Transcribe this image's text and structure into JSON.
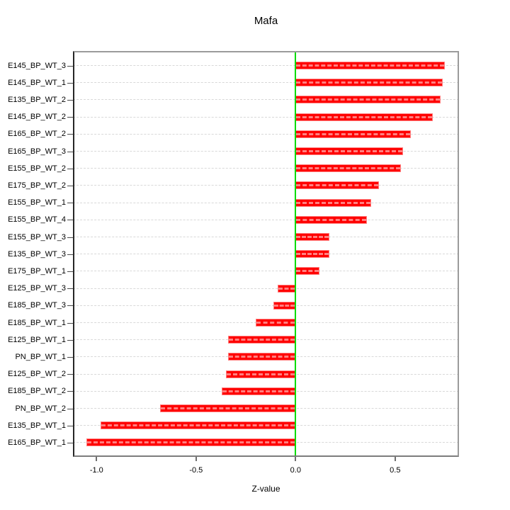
{
  "chart_data": {
    "type": "bar",
    "orientation": "horizontal",
    "title": "Mafa",
    "xlabel": "Z-value",
    "ylabel": "",
    "categories": [
      "E145_BP_WT_3",
      "E145_BP_WT_1",
      "E135_BP_WT_2",
      "E145_BP_WT_2",
      "E165_BP_WT_2",
      "E165_BP_WT_3",
      "E155_BP_WT_2",
      "E175_BP_WT_2",
      "E155_BP_WT_1",
      "E155_BP_WT_4",
      "E155_BP_WT_3",
      "E135_BP_WT_3",
      "E175_BP_WT_1",
      "E125_BP_WT_3",
      "E185_BP_WT_3",
      "E185_BP_WT_1",
      "E125_BP_WT_1",
      "PN_BP_WT_1",
      "E125_BP_WT_2",
      "E185_BP_WT_2",
      "PN_BP_WT_2",
      "E135_BP_WT_1",
      "E165_BP_WT_1"
    ],
    "values": [
      0.75,
      0.74,
      0.73,
      0.69,
      0.58,
      0.54,
      0.53,
      0.42,
      0.38,
      0.36,
      0.17,
      0.17,
      0.12,
      -0.09,
      -0.11,
      -0.2,
      -0.34,
      -0.34,
      -0.35,
      -0.37,
      -0.68,
      -0.98,
      -1.05
    ],
    "xlim": [
      -1.12,
      0.82
    ],
    "x_tick_values": [
      -1.0,
      -0.5,
      0.0,
      0.5
    ],
    "x_tick_labels": [
      "-1.0",
      "-0.5",
      "0.0",
      "0.5"
    ],
    "grid": "horizontal dashed reference line per category",
    "legend": "none",
    "zero_line": true,
    "colors": {
      "bar_fill": "#ff0000",
      "bar_edge": "#ff8080",
      "zero_line": "#00dc00",
      "gridline": "#d8d8d8",
      "box_border": "#9b9b9b",
      "text": "#000000"
    }
  }
}
